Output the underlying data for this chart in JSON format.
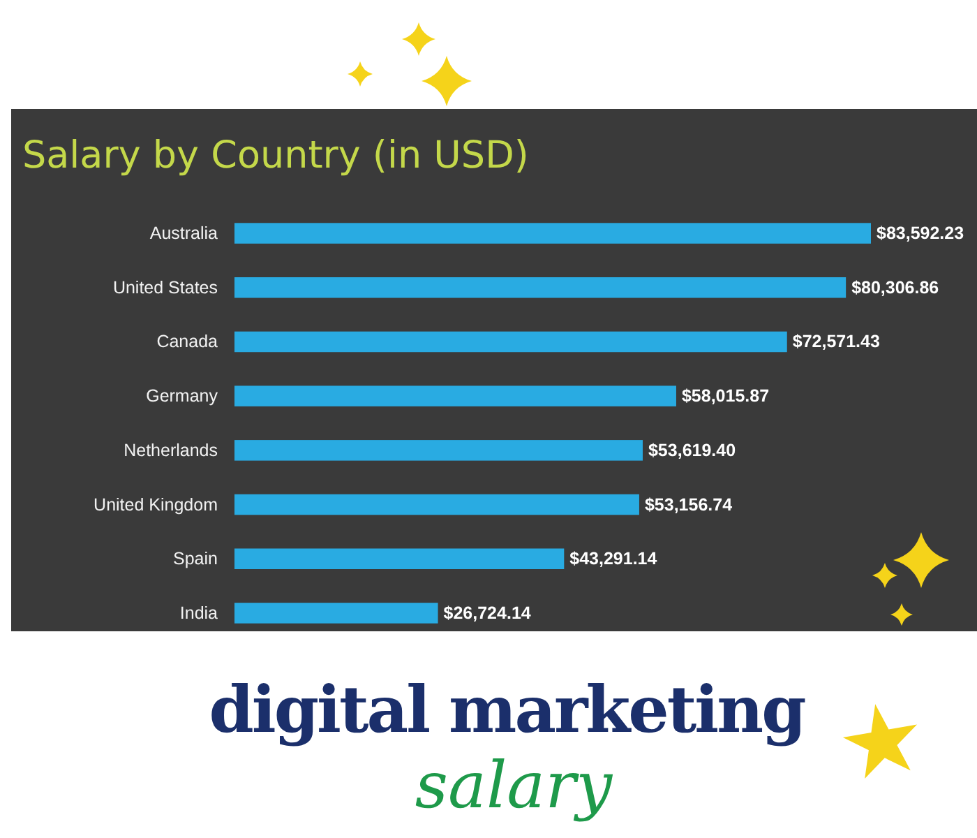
{
  "chart_data": {
    "type": "bar",
    "orientation": "horizontal",
    "title": "Salary by Country (in USD)",
    "categories": [
      "Australia",
      "United States",
      "Canada",
      "Germany",
      "Netherlands",
      "United Kingdom",
      "Spain",
      "India"
    ],
    "values": [
      83592.23,
      80306.86,
      72571.43,
      58015.87,
      53619.4,
      53156.74,
      43291.14,
      26724.14
    ],
    "value_labels": [
      "$83,592.23",
      "$80,306.86",
      "$72,571.43",
      "$58,015.87",
      "$53,619.40",
      "$53,156.74",
      "$43,291.14",
      "$26,724.14"
    ],
    "color": "#29abe2",
    "annotations": [
      "digital marketing",
      "salary"
    ]
  }
}
